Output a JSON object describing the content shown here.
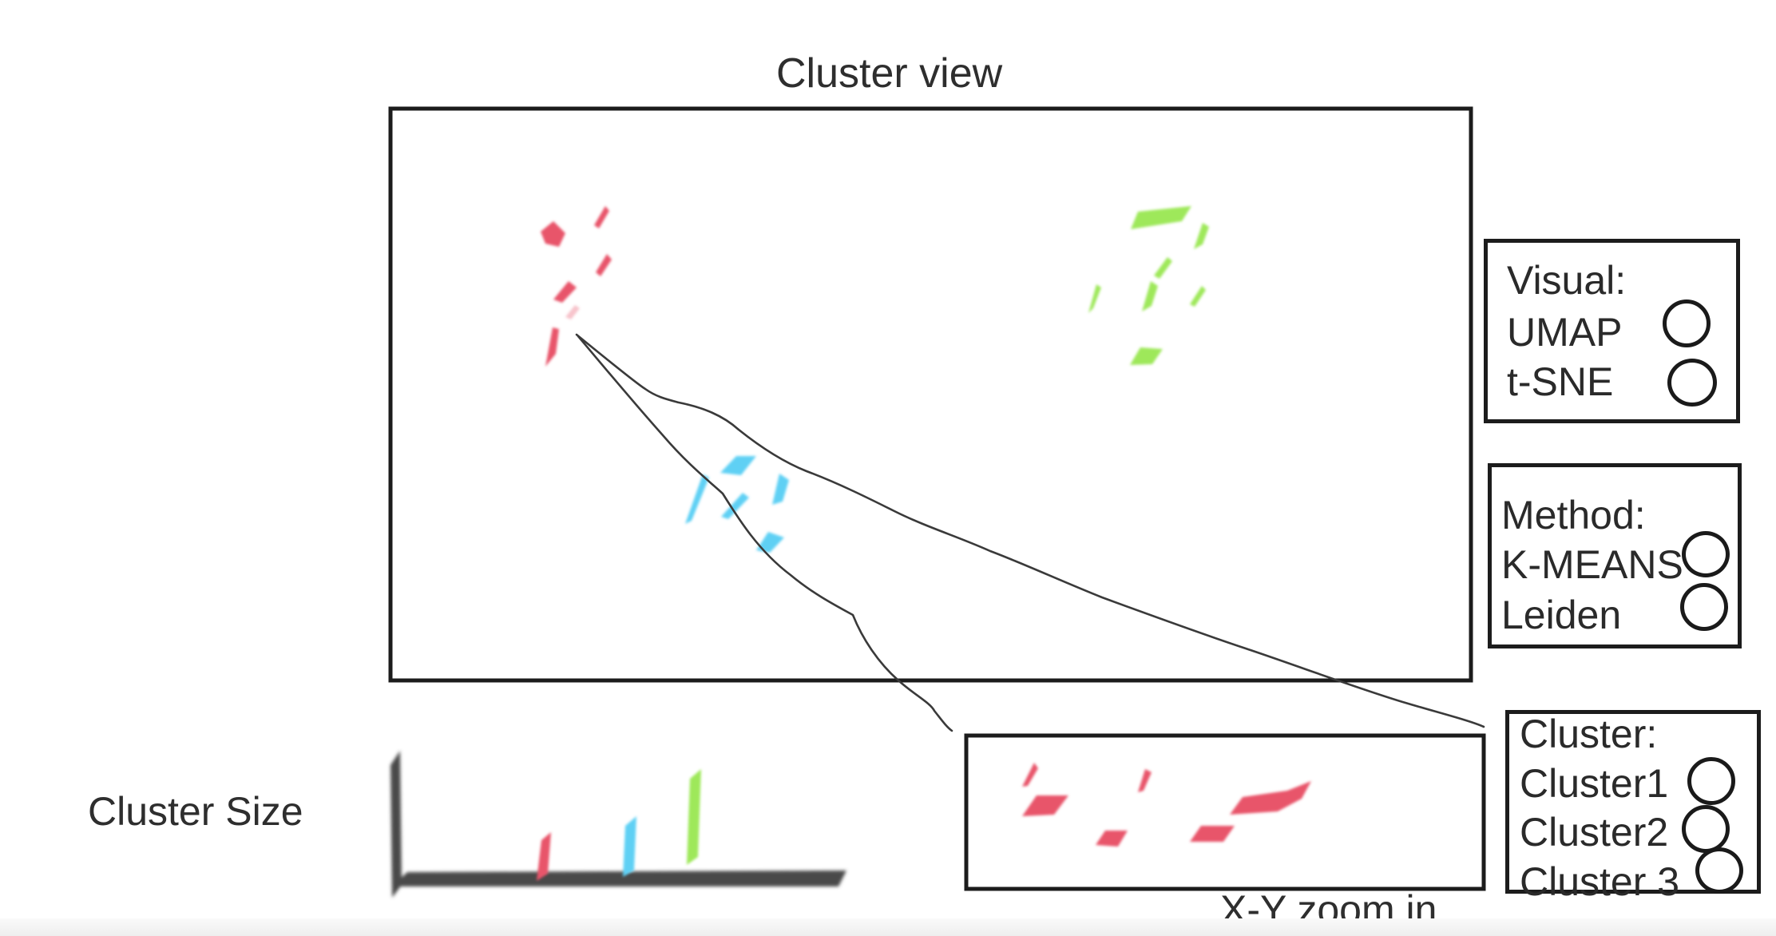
{
  "cluster_view": {
    "title": "Cluster view"
  },
  "cluster_size": {
    "label": "Cluster Size"
  },
  "zoom": {
    "label": "X-Y zoom in"
  },
  "visual_panel": {
    "title": "Visual:",
    "options": [
      "UMAP",
      "t-SNE"
    ]
  },
  "method_panel": {
    "title": "Method:",
    "options": [
      "K-MEANS",
      "Leiden"
    ]
  },
  "cluster_panel": {
    "title": "Cluster:",
    "options": [
      "Cluster1",
      "Cluster2",
      "Cluster 3"
    ]
  },
  "colors": {
    "cluster_red": "#e8546a",
    "cluster_blue": "#5fd0f4",
    "cluster_green": "#9ee85a",
    "outline": "#1c1c1c",
    "text": "#2e2e2e"
  }
}
